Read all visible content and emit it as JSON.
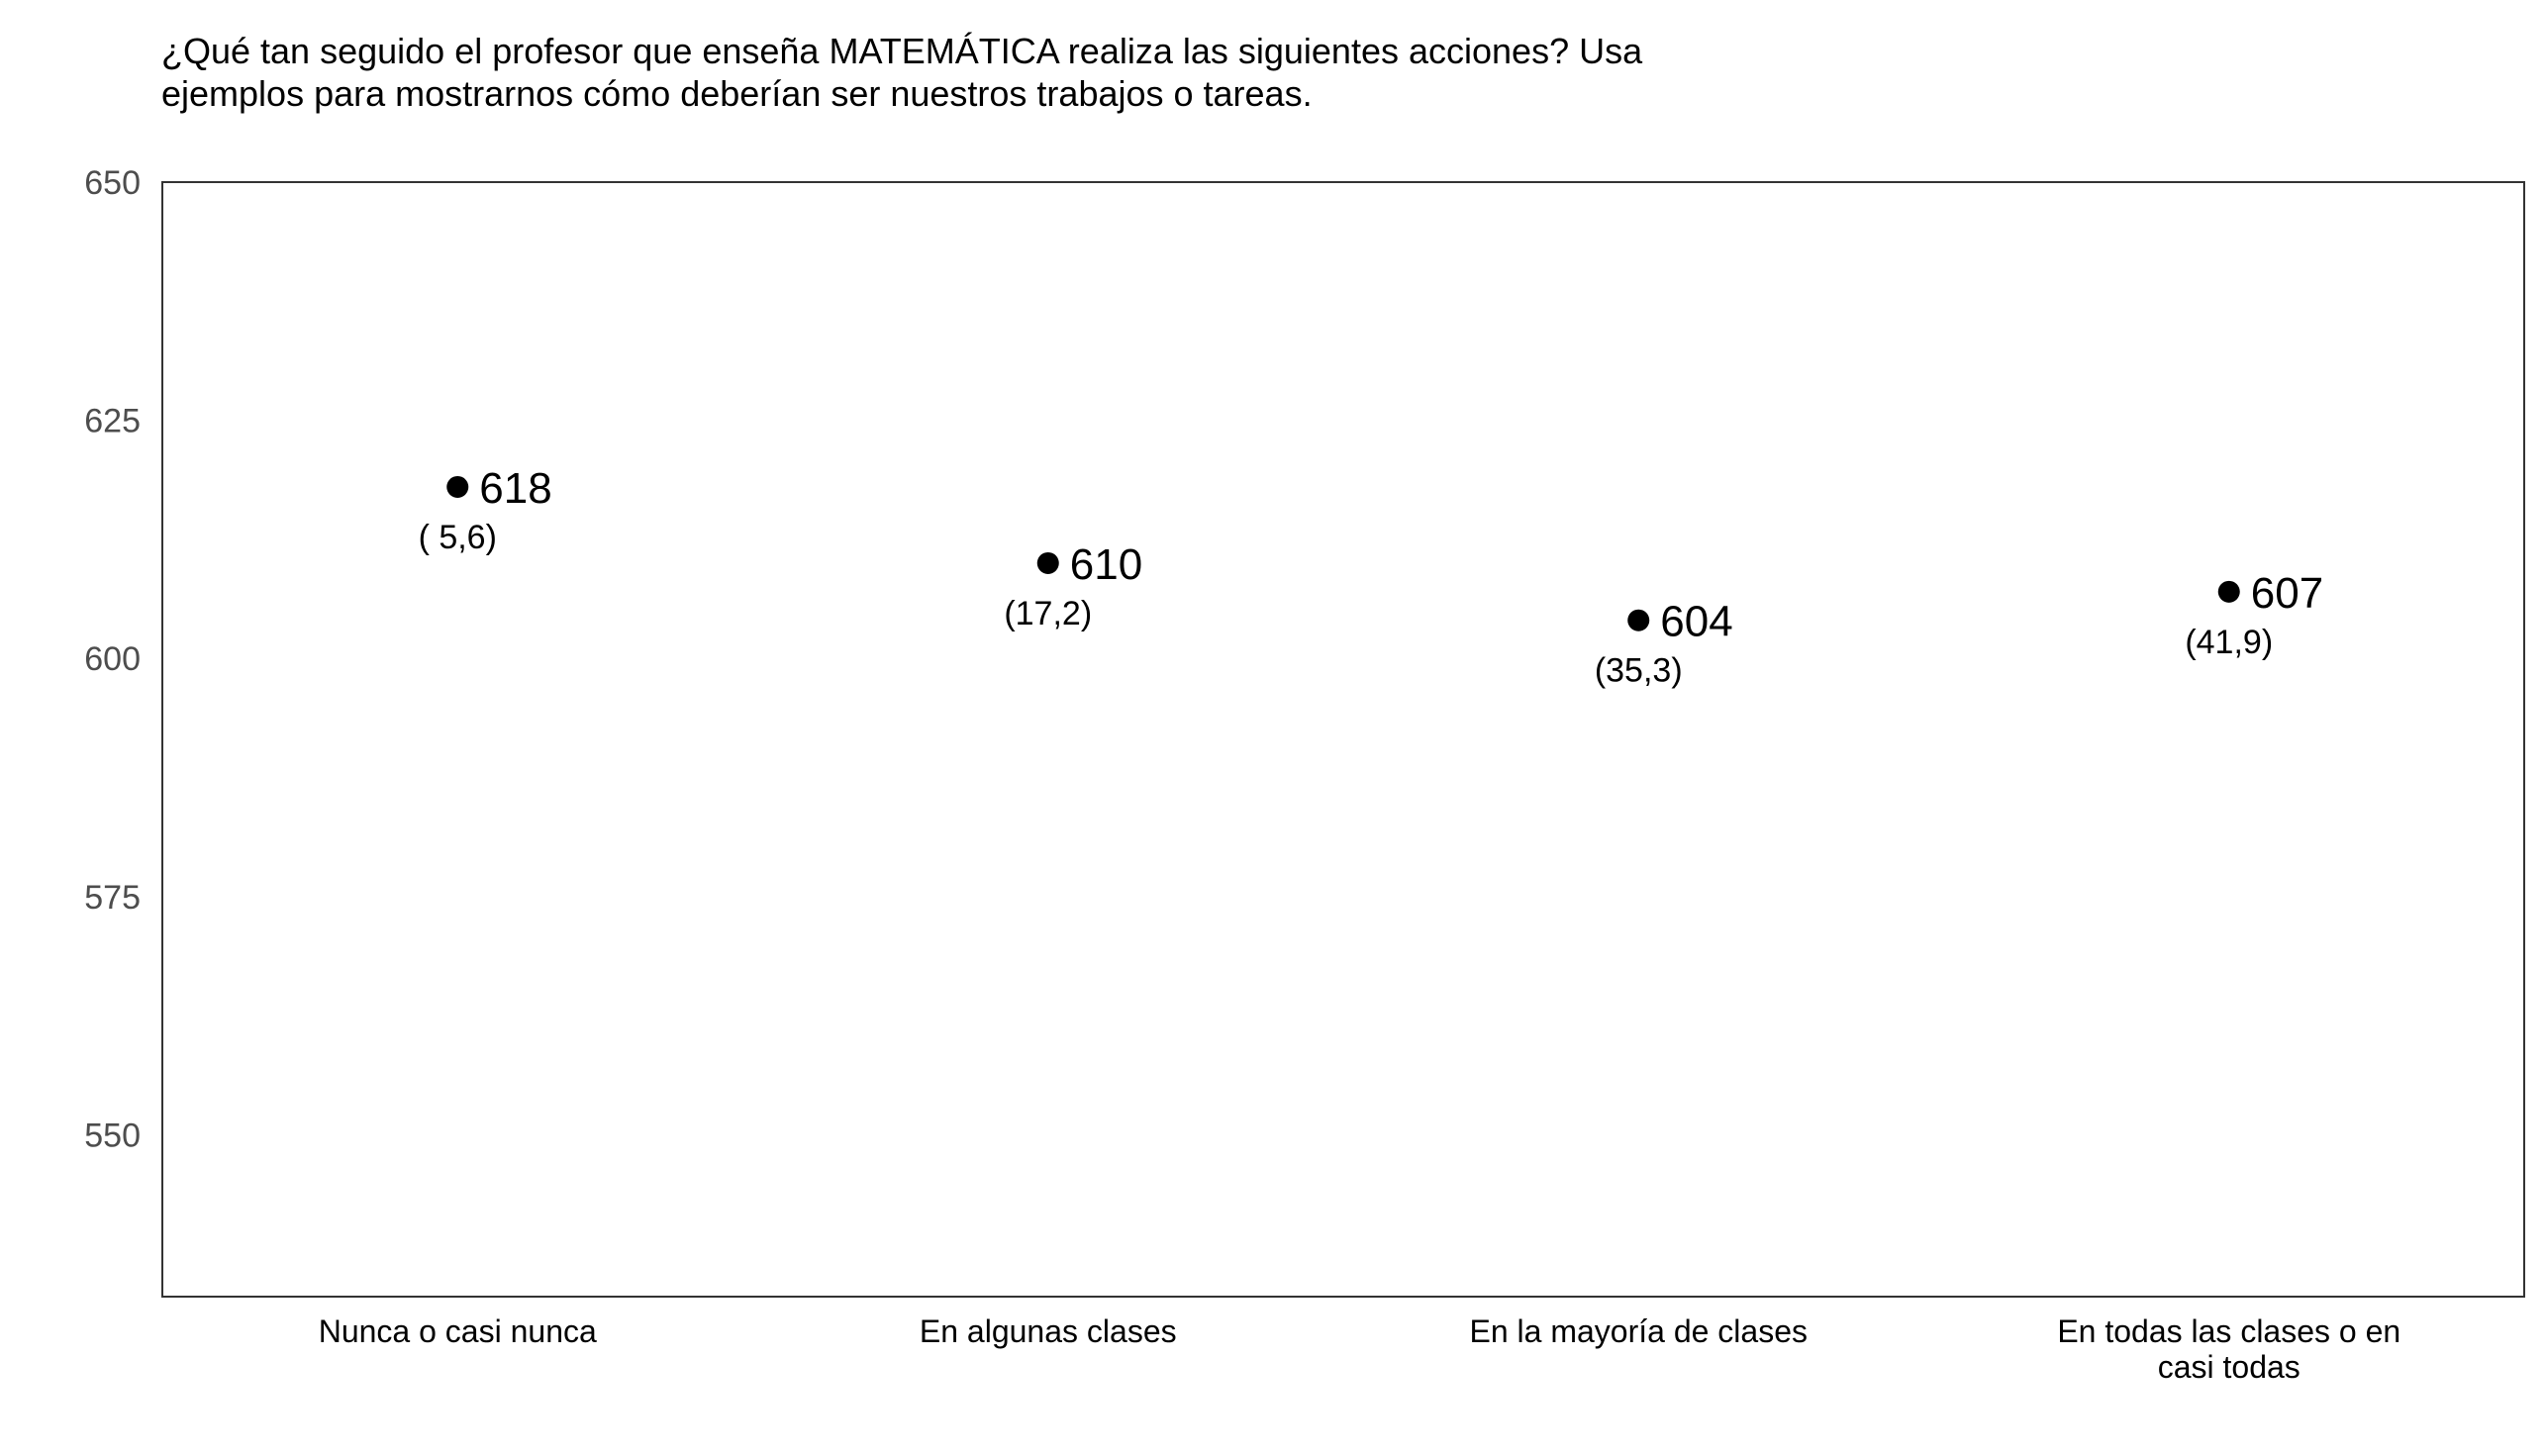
{
  "chart_data": {
    "type": "scatter",
    "title": "¿Qué tan seguido el profesor que enseña MATEMÁTICA realiza las siguientes acciones? Usa ejemplos para mostrarnos cómo deberían ser nuestros trabajos o tareas.",
    "xlabel": "",
    "ylabel": "",
    "ylim": [
      533,
      650
    ],
    "yticks": [
      550,
      575,
      600,
      625,
      650
    ],
    "grid": false,
    "categories": [
      [
        "Nunca o casi nunca"
      ],
      [
        "En algunas clases"
      ],
      [
        "En la mayoría de clases"
      ],
      [
        "En todas las clases o en",
        "casi todas"
      ]
    ],
    "values": [
      618,
      610,
      604,
      607
    ],
    "value_labels": [
      "618",
      "610",
      "604",
      "607"
    ],
    "sub_labels": [
      "( 5,6)",
      "(17,2)",
      "(35,3)",
      "(41,9)"
    ]
  }
}
